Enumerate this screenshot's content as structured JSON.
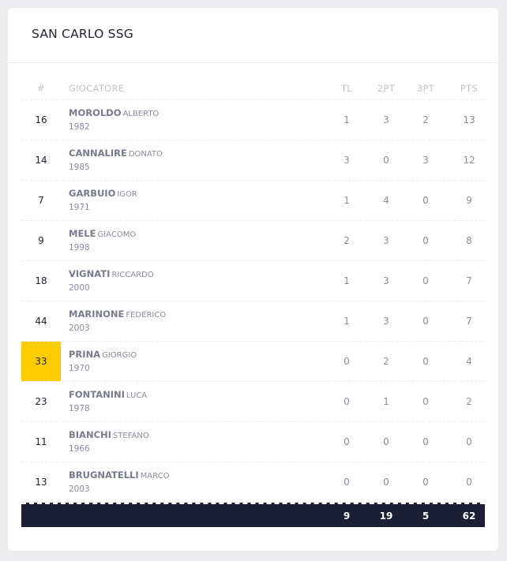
{
  "team": {
    "title": "SAN CARLO SSG"
  },
  "columns": {
    "num": "#",
    "player": "GIOCATORE",
    "tl": "TL",
    "pt2": "2PT",
    "pt3": "3PT",
    "pts": "PTS"
  },
  "players": [
    {
      "num": "16",
      "surname": "MOROLDO",
      "firstname": "ALBERTO",
      "year": "1982",
      "tl": "1",
      "pt2": "3",
      "pt3": "2",
      "pts": "13",
      "highlight": false
    },
    {
      "num": "14",
      "surname": "CANNALIRE",
      "firstname": "DONATO",
      "year": "1985",
      "tl": "3",
      "pt2": "0",
      "pt3": "3",
      "pts": "12",
      "highlight": false
    },
    {
      "num": "7",
      "surname": "GARBUIO",
      "firstname": "IGOR",
      "year": "1971",
      "tl": "1",
      "pt2": "4",
      "pt3": "0",
      "pts": "9",
      "highlight": false
    },
    {
      "num": "9",
      "surname": "MELE",
      "firstname": "GIACOMO",
      "year": "1998",
      "tl": "2",
      "pt2": "3",
      "pt3": "0",
      "pts": "8",
      "highlight": false
    },
    {
      "num": "18",
      "surname": "VIGNATI",
      "firstname": "RICCARDO",
      "year": "2000",
      "tl": "1",
      "pt2": "3",
      "pt3": "0",
      "pts": "7",
      "highlight": false
    },
    {
      "num": "44",
      "surname": "MARINONE",
      "firstname": "FEDERICO",
      "year": "2003",
      "tl": "1",
      "pt2": "3",
      "pt3": "0",
      "pts": "7",
      "highlight": false
    },
    {
      "num": "33",
      "surname": "PRINA",
      "firstname": "GIORGIO",
      "year": "1970",
      "tl": "0",
      "pt2": "2",
      "pt3": "0",
      "pts": "4",
      "highlight": true
    },
    {
      "num": "23",
      "surname": "FONTANINI",
      "firstname": "LUCA",
      "year": "1978",
      "tl": "0",
      "pt2": "1",
      "pt3": "0",
      "pts": "2",
      "highlight": false
    },
    {
      "num": "11",
      "surname": "BIANCHI",
      "firstname": "STEFANO",
      "year": "1966",
      "tl": "0",
      "pt2": "0",
      "pt3": "0",
      "pts": "0",
      "highlight": false
    },
    {
      "num": "13",
      "surname": "BRUGNATELLI",
      "firstname": "MARCO",
      "year": "2003",
      "tl": "0",
      "pt2": "0",
      "pt3": "0",
      "pts": "0",
      "highlight": false
    }
  ],
  "totals": {
    "tl": "9",
    "pt2": "19",
    "pt3": "5",
    "pts": "62"
  },
  "colors": {
    "highlight": "#ffcc00",
    "totals_bg": "#1c1e33"
  }
}
